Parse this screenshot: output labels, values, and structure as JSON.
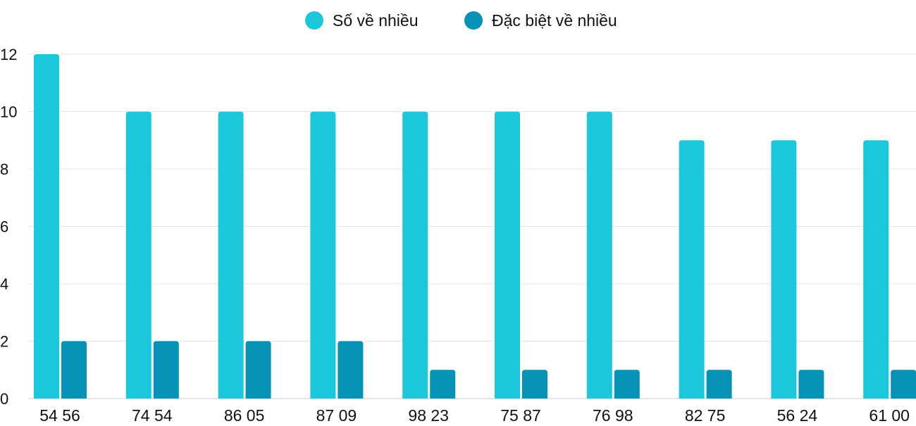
{
  "chart_data": {
    "type": "bar",
    "categories": [
      "54 56",
      "74 54",
      "86 05",
      "87 09",
      "98 23",
      "75 87",
      "76 98",
      "82 75",
      "56 24",
      "61 00"
    ],
    "series": [
      {
        "name": "Số về nhiều",
        "color": "#1BC8DB",
        "values": [
          12,
          10,
          10,
          10,
          10,
          10,
          10,
          9,
          9,
          9
        ]
      },
      {
        "name": "Đặc biệt về nhiều",
        "color": "#0592B6",
        "values": [
          2,
          2,
          2,
          2,
          1,
          1,
          1,
          1,
          1,
          1
        ]
      }
    ],
    "ylim": [
      0,
      12
    ],
    "yticks": [
      0,
      2,
      4,
      6,
      8,
      10,
      12
    ],
    "grid": true,
    "legend": "top-center",
    "title": "",
    "xlabel": "",
    "ylabel": ""
  }
}
